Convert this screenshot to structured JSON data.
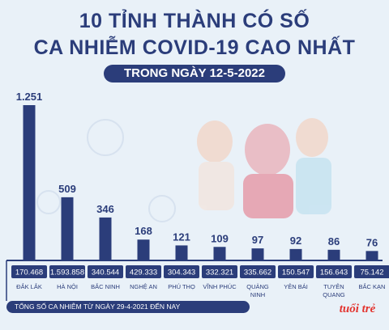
{
  "header": {
    "title_line1": "10 TỈNH THÀNH CÓ SỐ",
    "title_line2": "CA NHIỄM COVID-19 CAO NHẤT",
    "date_label": "TRONG NGÀY 12-5-2022"
  },
  "footnote": "TỔNG SỐ CA NHIỄM TỪ NGÀY 29-4-2021 ĐẾN NAY",
  "logo_text": "tuổi trẻ",
  "colors": {
    "bar": "#2b3d7a",
    "title": "#2b3d7a",
    "background": "#e9f1f8",
    "logo": "#e3342f"
  },
  "chart_data": {
    "type": "bar",
    "categories": [
      "ĐẮK LẮK",
      "HÀ NỘI",
      "BẮC NINH",
      "NGHỆ AN",
      "PHÚ THỌ",
      "VĨNH PHÚC",
      "QUẢNG NINH",
      "YÊN BÁI",
      "TUYÊN QUANG",
      "BẮC KẠN"
    ],
    "values": [
      1251,
      509,
      346,
      168,
      121,
      109,
      97,
      92,
      86,
      76
    ],
    "value_labels": [
      "1.251",
      "509",
      "346",
      "168",
      "121",
      "109",
      "97",
      "92",
      "86",
      "76"
    ],
    "totals": [
      "170.468",
      "1.593.858",
      "340.544",
      "429.333",
      "304.343",
      "332.321",
      "335.662",
      "150.547",
      "156.643",
      "75.142"
    ],
    "ylim": [
      0,
      1251
    ]
  }
}
